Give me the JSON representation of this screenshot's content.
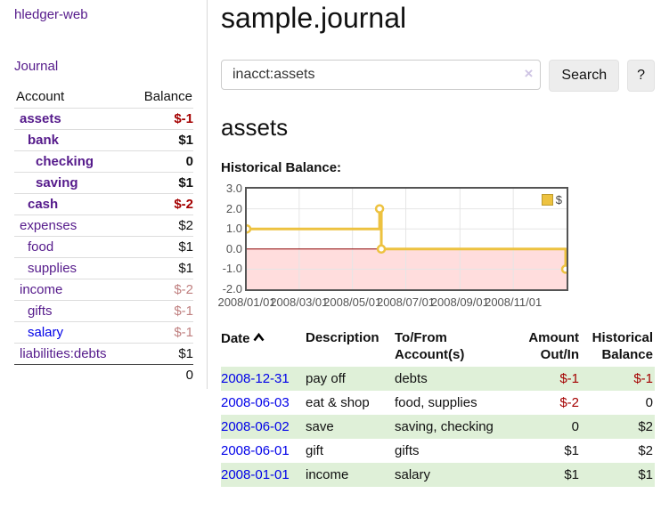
{
  "app": {
    "title": "hledger-web"
  },
  "nav": {
    "journal": "Journal"
  },
  "sidebar": {
    "header": {
      "account": "Account",
      "balance": "Balance"
    },
    "accounts": [
      {
        "name": "assets",
        "balance": "$-1"
      },
      {
        "name": "bank",
        "balance": "$1"
      },
      {
        "name": "checking",
        "balance": "0"
      },
      {
        "name": "saving",
        "balance": "$1"
      },
      {
        "name": "cash",
        "balance": "$-2"
      },
      {
        "name": "expenses",
        "balance": "$2"
      },
      {
        "name": "food",
        "balance": "$1"
      },
      {
        "name": "supplies",
        "balance": "$1"
      },
      {
        "name": "income",
        "balance": "$-2"
      },
      {
        "name": "gifts",
        "balance": "$-1"
      },
      {
        "name": "salary",
        "balance": "$-1"
      },
      {
        "name": "liabilities:debts",
        "balance": "$1"
      }
    ],
    "total": "0"
  },
  "main": {
    "title": "sample.journal",
    "search": {
      "value": "inacct:assets",
      "clear": "×",
      "button": "Search",
      "help": "?"
    },
    "heading": "assets",
    "chart_label": "Historical Balance:"
  },
  "chart_data": {
    "type": "line",
    "title": "Historical Balance",
    "series": [
      {
        "name": "$",
        "color": "#edc240",
        "step": true,
        "points": [
          [
            "2008/01/01",
            1.0
          ],
          [
            "2008/06/01",
            2.0
          ],
          [
            "2008/06/03",
            0.0
          ],
          [
            "2008/12/31",
            -1.0
          ]
        ]
      }
    ],
    "xlim": [
      "2008/01/01",
      "2009/01/01"
    ],
    "ylim": [
      -2.0,
      3.0
    ],
    "y_ticks": [
      3.0,
      2.0,
      1.0,
      0.0,
      -1.0,
      -2.0
    ],
    "x_ticks": [
      "2008/01/01",
      "2008/03/01",
      "2008/05/01",
      "2008/07/01",
      "2008/09/01",
      "2008/11/01"
    ],
    "grid": true,
    "negative_fill": "#ffdddd",
    "zero_line_color": "#8b0000",
    "grid_color": "#e5e5e5",
    "legend": "$",
    "legend_position": "top-right"
  },
  "register": {
    "headers": {
      "date": "Date",
      "description": "Description",
      "account": "To/From Account(s)",
      "amount": "Amount Out/In",
      "balance": "Historical Balance"
    },
    "rows": [
      {
        "date": "2008-12-31",
        "description": "pay off",
        "account": "debts",
        "amount": "$-1",
        "balance": "$-1"
      },
      {
        "date": "2008-06-03",
        "description": "eat & shop",
        "account": "food, supplies",
        "amount": "$-2",
        "balance": "0"
      },
      {
        "date": "2008-06-02",
        "description": "save",
        "account": "saving, checking",
        "amount": "0",
        "balance": "$2"
      },
      {
        "date": "2008-06-01",
        "description": "gift",
        "account": "gifts",
        "amount": "$1",
        "balance": "$2"
      },
      {
        "date": "2008-01-01",
        "description": "income",
        "account": "salary",
        "amount": "$1",
        "balance": "$1"
      }
    ]
  }
}
